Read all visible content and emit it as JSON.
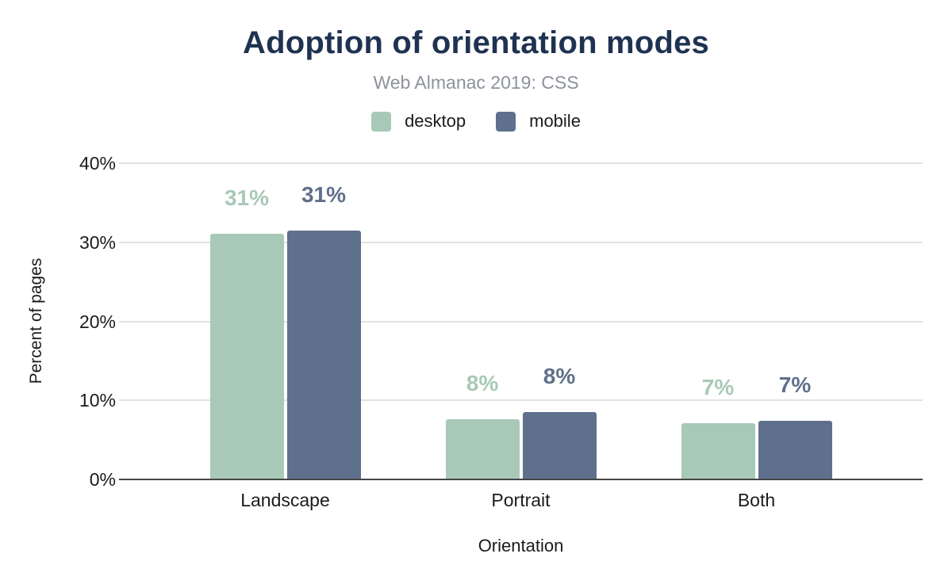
{
  "chart_data": {
    "type": "bar",
    "title": "Adoption of orientation modes",
    "subtitle": "Web Almanac 2019: CSS",
    "xlabel": "Orientation",
    "ylabel": "Percent of pages",
    "categories": [
      "Landscape",
      "Portrait",
      "Both"
    ],
    "series": [
      {
        "name": "desktop",
        "color": "#a8c9b8",
        "values": [
          31.0,
          7.5,
          7.0
        ],
        "data_labels": [
          "31%",
          "8%",
          "7%"
        ]
      },
      {
        "name": "mobile",
        "color": "#5f708c",
        "values": [
          31.4,
          8.4,
          7.3
        ],
        "data_labels": [
          "31%",
          "8%",
          "7%"
        ]
      }
    ],
    "y_axis": {
      "ticks": [
        "0%",
        "10%",
        "20%",
        "30%",
        "40%"
      ],
      "min": 0,
      "max": 40
    },
    "grid": true,
    "legend_position": "top-center",
    "colors": {
      "title": "#1f3251",
      "subtitle": "#8d929b",
      "gridline": "#e2e2e2",
      "axis_line": "#464646",
      "text": "#1b1b1b"
    }
  }
}
